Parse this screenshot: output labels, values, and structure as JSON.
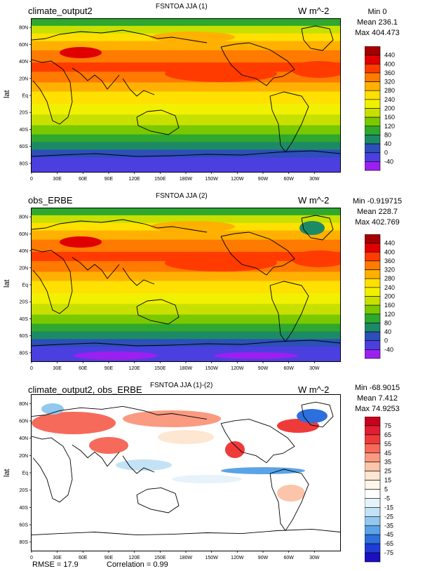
{
  "lat_label": "lat",
  "lon_ticks": [
    "0",
    "30E",
    "60E",
    "90E",
    "120E",
    "150E",
    "180W",
    "150W",
    "120W",
    "90W",
    "60W",
    "30W"
  ],
  "lat_ticks": [
    "80N",
    "60N",
    "40N",
    "20N",
    "Eq",
    "20S",
    "40S",
    "60S",
    "80S"
  ],
  "panels": [
    {
      "title": "FSNTOA JJA (1)",
      "left_title": "climate_output2",
      "units": "W m^-2",
      "min_text": "Min 0",
      "mean_text": "Mean 236.1",
      "max_text": "Max 404.473",
      "colorbar": {
        "labels": [
          "440",
          "400",
          "360",
          "320",
          "280",
          "240",
          "200",
          "160",
          "120",
          "80",
          "40",
          "0",
          "-40"
        ],
        "colors": [
          "#a50000",
          "#e00000",
          "#ff3b00",
          "#ff7a00",
          "#ffb000",
          "#ffe000",
          "#f0f000",
          "#c8e000",
          "#7ac800",
          "#2ea82e",
          "#1d8a66",
          "#2c4fb8",
          "#4b3fe0",
          "#9b20f0"
        ]
      }
    },
    {
      "title": "FSNTOA JJA (2)",
      "left_title": "obs_ERBE",
      "units": "W m^-2",
      "min_text": "Min -0.919715",
      "mean_text": "Mean 228.7",
      "max_text": "Max 402.769",
      "colorbar": {
        "labels": [
          "440",
          "400",
          "360",
          "320",
          "280",
          "240",
          "200",
          "160",
          "120",
          "80",
          "40",
          "0",
          "-40"
        ],
        "colors": [
          "#a50000",
          "#e00000",
          "#ff3b00",
          "#ff7a00",
          "#ffb000",
          "#ffe000",
          "#f0f000",
          "#c8e000",
          "#7ac800",
          "#2ea82e",
          "#1d8a66",
          "#2c4fb8",
          "#4b3fe0",
          "#9b20f0"
        ]
      }
    },
    {
      "title": "FSNTOA JJA (1)-(2)",
      "left_title": "climate_output2, obs_ERBE",
      "units": "W m^-2",
      "min_text": "Min -68.9015",
      "mean_text": "Mean 7.412",
      "max_text": "Max 74.9253",
      "colorbar": {
        "labels": [
          "75",
          "65",
          "55",
          "45",
          "35",
          "25",
          "15",
          "5",
          "-5",
          "-15",
          "-25",
          "-35",
          "-45",
          "-65",
          "-75"
        ],
        "colors": [
          "#c8001e",
          "#e01e32",
          "#ef3a3a",
          "#f56a5a",
          "#fa9a80",
          "#fcc4a8",
          "#fde6d2",
          "#fff5e8",
          "#ffffff",
          "#e6f3fb",
          "#c3e2f5",
          "#92c8ee",
          "#5aa4e6",
          "#2d6fdc",
          "#1f3cd6",
          "#1a10c0"
        ]
      }
    }
  ],
  "footer": {
    "rmse": "RMSE = 17.9",
    "correlation": "Correlation = 0.99"
  },
  "chart_data": [
    {
      "type": "heatmap",
      "title": "FSNTOA JJA (1)",
      "subtitle": "climate_output2",
      "units": "W m^-2",
      "ylabel": "lat",
      "stats": {
        "min": 0,
        "mean": 236.1,
        "max": 404.473
      },
      "levels": [
        -40,
        0,
        40,
        80,
        120,
        160,
        200,
        240,
        280,
        320,
        360,
        400,
        440
      ]
    },
    {
      "type": "heatmap",
      "title": "FSNTOA JJA (2)",
      "subtitle": "obs_ERBE",
      "units": "W m^-2",
      "ylabel": "lat",
      "stats": {
        "min": -0.919715,
        "mean": 228.7,
        "max": 402.769
      },
      "levels": [
        -40,
        0,
        40,
        80,
        120,
        160,
        200,
        240,
        280,
        320,
        360,
        400,
        440
      ]
    },
    {
      "type": "heatmap",
      "title": "FSNTOA JJA (1)-(2)",
      "subtitle": "climate_output2, obs_ERBE",
      "units": "W m^-2",
      "ylabel": "lat",
      "stats": {
        "min": -68.9015,
        "mean": 7.412,
        "max": 74.9253,
        "rmse": 17.9,
        "correlation": 0.99
      },
      "levels": [
        -75,
        -65,
        -45,
        -35,
        -25,
        -15,
        -5,
        5,
        15,
        25,
        35,
        45,
        55,
        65,
        75
      ]
    }
  ]
}
